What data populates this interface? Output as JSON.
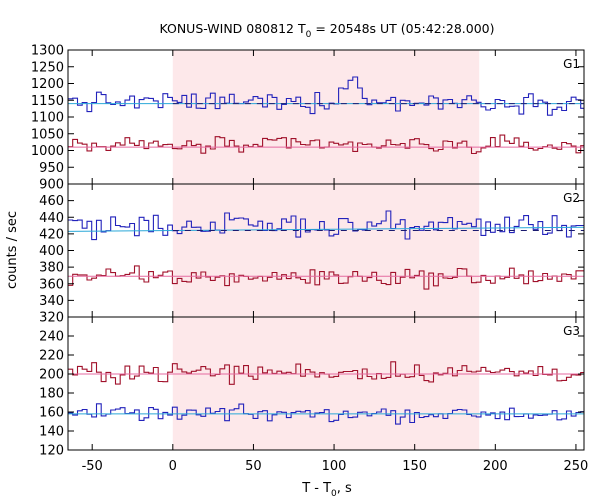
{
  "title": {
    "prefix": "KONUS-WIND 080812 T",
    "sub": "0",
    "suffix": " = 20548s UT (05:42:28.000)"
  },
  "colors": {
    "highlight": "#fde8ea",
    "red_series": "#a0102a",
    "blue_series": "#2222bb",
    "blue_fit": "#2aa8d8",
    "red_fit": "#e56aa0",
    "background_dash": "#1a1a70"
  },
  "chart_data": {
    "type": "line",
    "title": "KONUS-WIND 080812 T0 = 20548s UT (05:42:28.000)",
    "xlabel": "T - T0, s",
    "ylabel": "counts / sec",
    "xlim": [
      -65,
      255
    ],
    "x_ticks": [
      -50,
      0,
      50,
      100,
      150,
      200,
      250
    ],
    "highlight_interval": [
      0,
      190
    ],
    "step_s": 2.944,
    "panels": [
      {
        "name": "G1",
        "ylim": [
          900,
          1300
        ],
        "y_ticks": [
          900,
          950,
          1000,
          1050,
          1100,
          1150,
          1200,
          1250,
          1300
        ],
        "series": [
          {
            "color": "blue",
            "mean": 1145,
            "amp": 25,
            "level": 1140,
            "level_end": 1140,
            "bumps": [
              {
                "x": [
                  100,
                  115
                ],
                "add": 60
              }
            ]
          },
          {
            "color": "red",
            "mean": 1015,
            "amp": 22,
            "level": 1010,
            "level_end": 1010,
            "bumps": []
          }
        ],
        "dashed_background": 1140
      },
      {
        "name": "G2",
        "ylim": [
          320,
          480
        ],
        "y_ticks": [
          320,
          340,
          360,
          380,
          400,
          420,
          440,
          460
        ],
        "series": [
          {
            "color": "blue",
            "mean": 430,
            "amp": 12,
            "level": 423,
            "level_end": 428,
            "bumps": []
          },
          {
            "color": "red",
            "mean": 368,
            "amp": 10,
            "level": 369,
            "level_end": 369,
            "bumps": []
          }
        ],
        "dashed_background": 424
      },
      {
        "name": "G3",
        "ylim": [
          120,
          260
        ],
        "y_ticks": [
          120,
          140,
          160,
          180,
          200,
          220,
          240
        ],
        "series": [
          {
            "color": "red",
            "mean": 202,
            "amp": 9,
            "level": 200,
            "level_end": 200,
            "bumps": []
          },
          {
            "color": "blue",
            "mean": 158,
            "amp": 7,
            "level": 158,
            "level_end": 158,
            "bumps": []
          }
        ],
        "dashed_background": null
      }
    ],
    "grid": false,
    "legend": "none"
  }
}
